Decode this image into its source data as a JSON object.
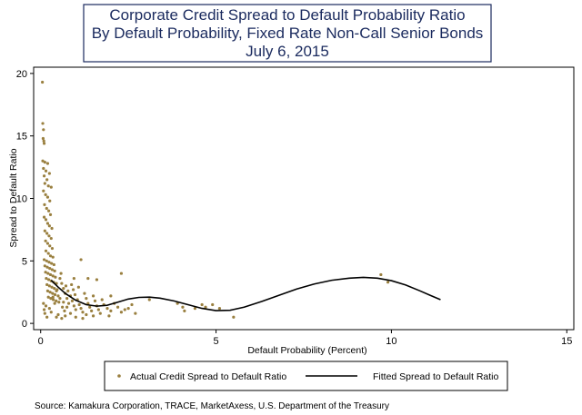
{
  "chart_data": {
    "type": "scatter",
    "title_lines": [
      "Corporate Credit Spread to Default Probability Ratio",
      "By Default Probability, Fixed Rate Non-Call Senior Bonds",
      "July 6, 2015"
    ],
    "xlabel": "Default Probability (Percent)",
    "ylabel": "Spread to Default Ratio",
    "xlim": [
      -0.2,
      15.2
    ],
    "ylim": [
      -0.5,
      20.5
    ],
    "x_ticks": [
      0,
      5,
      10,
      15
    ],
    "y_ticks": [
      0,
      5,
      10,
      15,
      20
    ],
    "x_tick_labels": [
      "0",
      "5",
      "10",
      "15"
    ],
    "y_tick_labels": [
      "0",
      "5",
      "10",
      "15",
      "20"
    ],
    "grid": false,
    "legend_position": "bottom",
    "source": "Source: Kamakura Corporation, TRACE, MarketAxess, U.S. Department of the Treasury",
    "colors": {
      "scatter": "#9a8040",
      "fit": "#000000",
      "title": "#1a2a5e"
    },
    "series": [
      {
        "name": "Actual Credit Spread to Default Ratio",
        "kind": "scatter",
        "points": [
          [
            0.05,
            19.3
          ],
          [
            0.06,
            16.0
          ],
          [
            0.08,
            15.5
          ],
          [
            0.07,
            14.8
          ],
          [
            0.1,
            14.4
          ],
          [
            0.09,
            14.6
          ],
          [
            0.06,
            13.0
          ],
          [
            0.12,
            12.9
          ],
          [
            0.2,
            12.8
          ],
          [
            0.08,
            12.4
          ],
          [
            0.15,
            12.2
          ],
          [
            0.25,
            12.0
          ],
          [
            0.1,
            11.8
          ],
          [
            0.18,
            11.5
          ],
          [
            0.12,
            11.2
          ],
          [
            0.22,
            11.0
          ],
          [
            0.3,
            10.9
          ],
          [
            0.08,
            10.6
          ],
          [
            0.14,
            10.3
          ],
          [
            0.2,
            10.1
          ],
          [
            0.26,
            9.8
          ],
          [
            0.11,
            9.5
          ],
          [
            0.17,
            9.2
          ],
          [
            0.23,
            9.0
          ],
          [
            0.28,
            8.7
          ],
          [
            0.1,
            8.5
          ],
          [
            0.15,
            8.3
          ],
          [
            0.2,
            8.0
          ],
          [
            0.25,
            7.8
          ],
          [
            0.32,
            7.6
          ],
          [
            0.12,
            7.4
          ],
          [
            0.18,
            7.2
          ],
          [
            0.24,
            7.0
          ],
          [
            0.3,
            6.8
          ],
          [
            0.14,
            6.6
          ],
          [
            0.2,
            6.4
          ],
          [
            0.26,
            6.2
          ],
          [
            0.33,
            6.0
          ],
          [
            0.15,
            5.8
          ],
          [
            0.22,
            5.6
          ],
          [
            0.28,
            5.4
          ],
          [
            0.35,
            5.3
          ],
          [
            0.1,
            5.1
          ],
          [
            0.17,
            5.0
          ],
          [
            0.24,
            4.9
          ],
          [
            0.31,
            4.8
          ],
          [
            0.38,
            4.7
          ],
          [
            0.12,
            4.6
          ],
          [
            0.19,
            4.5
          ],
          [
            0.26,
            4.4
          ],
          [
            0.33,
            4.3
          ],
          [
            0.4,
            4.2
          ],
          [
            0.14,
            4.1
          ],
          [
            0.21,
            4.0
          ],
          [
            0.28,
            3.9
          ],
          [
            0.35,
            3.8
          ],
          [
            0.42,
            3.7
          ],
          [
            0.16,
            3.6
          ],
          [
            0.23,
            3.5
          ],
          [
            0.3,
            3.4
          ],
          [
            0.37,
            3.3
          ],
          [
            0.45,
            3.2
          ],
          [
            0.18,
            3.1
          ],
          [
            0.25,
            3.0
          ],
          [
            0.32,
            2.9
          ],
          [
            0.39,
            2.8
          ],
          [
            0.47,
            2.7
          ],
          [
            0.2,
            2.6
          ],
          [
            0.27,
            2.5
          ],
          [
            0.34,
            2.4
          ],
          [
            0.41,
            2.3
          ],
          [
            0.5,
            2.2
          ],
          [
            0.22,
            2.1
          ],
          [
            0.29,
            2.0
          ],
          [
            0.36,
            1.9
          ],
          [
            0.44,
            1.8
          ],
          [
            0.52,
            1.7
          ],
          [
            0.08,
            1.6
          ],
          [
            0.15,
            1.4
          ],
          [
            0.1,
            1.1
          ],
          [
            0.12,
            0.8
          ],
          [
            0.18,
            0.5
          ],
          [
            0.25,
            1.2
          ],
          [
            0.3,
            0.9
          ],
          [
            0.55,
            3.6
          ],
          [
            0.6,
            3.2
          ],
          [
            0.65,
            2.8
          ],
          [
            0.7,
            2.4
          ],
          [
            0.75,
            2.0
          ],
          [
            0.8,
            1.6
          ],
          [
            0.58,
            4.0
          ],
          [
            0.62,
            1.3
          ],
          [
            0.68,
            1.0
          ],
          [
            0.72,
            3.0
          ],
          [
            0.78,
            2.6
          ],
          [
            0.85,
            2.2
          ],
          [
            0.9,
            1.8
          ],
          [
            0.95,
            1.4
          ],
          [
            1.0,
            1.1
          ],
          [
            0.88,
            3.1
          ],
          [
            0.93,
            2.7
          ],
          [
            0.98,
            2.3
          ],
          [
            1.05,
            1.9
          ],
          [
            1.1,
            1.5
          ],
          [
            1.15,
            1.2
          ],
          [
            1.2,
            0.9
          ],
          [
            1.08,
            2.9
          ],
          [
            1.25,
            2.4
          ],
          [
            1.3,
            2.0
          ],
          [
            1.35,
            1.6
          ],
          [
            1.4,
            1.3
          ],
          [
            1.45,
            1.0
          ],
          [
            1.5,
            2.2
          ],
          [
            1.55,
            1.8
          ],
          [
            1.6,
            1.4
          ],
          [
            1.65,
            1.1
          ],
          [
            1.7,
            0.8
          ],
          [
            1.75,
            1.9
          ],
          [
            1.8,
            1.5
          ],
          [
            1.9,
            1.2
          ],
          [
            2.0,
            1.0
          ],
          [
            2.1,
            1.6
          ],
          [
            2.2,
            1.3
          ],
          [
            2.3,
            0.9
          ],
          [
            2.4,
            1.1
          ],
          [
            1.15,
            5.1
          ],
          [
            1.35,
            3.6
          ],
          [
            1.6,
            3.5
          ],
          [
            0.95,
            3.6
          ],
          [
            0.5,
            0.7
          ],
          [
            0.45,
            0.5
          ],
          [
            0.6,
            0.4
          ],
          [
            0.7,
            0.6
          ],
          [
            0.85,
            0.8
          ],
          [
            1.0,
            0.5
          ],
          [
            1.2,
            0.4
          ],
          [
            2.5,
            1.2
          ],
          [
            2.7,
            0.8
          ],
          [
            2.3,
            4.0
          ],
          [
            2.6,
            1.5
          ],
          [
            2.0,
            2.2
          ],
          [
            1.95,
            0.6
          ],
          [
            1.5,
            0.6
          ],
          [
            1.3,
            0.7
          ],
          [
            0.4,
            1.6
          ],
          [
            0.35,
            2.1
          ],
          [
            0.45,
            2.6
          ],
          [
            0.55,
            2.0
          ],
          [
            0.65,
            1.7
          ],
          [
            0.75,
            1.3
          ],
          [
            3.9,
            1.6
          ],
          [
            4.05,
            1.3
          ],
          [
            4.1,
            1.0
          ],
          [
            4.4,
            1.2
          ],
          [
            4.6,
            1.5
          ],
          [
            4.7,
            1.3
          ],
          [
            4.9,
            1.5
          ],
          [
            5.1,
            1.2
          ],
          [
            5.5,
            0.5
          ],
          [
            9.7,
            3.9
          ],
          [
            9.9,
            3.3
          ],
          [
            3.1,
            1.9
          ]
        ]
      },
      {
        "name": "Fitted Spread to Default Ratio",
        "kind": "line",
        "points": [
          [
            0.3,
            3.45
          ],
          [
            0.5,
            2.9
          ],
          [
            0.7,
            2.4
          ],
          [
            1.0,
            1.85
          ],
          [
            1.3,
            1.5
          ],
          [
            1.6,
            1.38
          ],
          [
            1.9,
            1.45
          ],
          [
            2.2,
            1.7
          ],
          [
            2.5,
            1.95
          ],
          [
            2.8,
            2.08
          ],
          [
            3.1,
            2.1
          ],
          [
            3.4,
            2.02
          ],
          [
            3.8,
            1.8
          ],
          [
            4.2,
            1.5
          ],
          [
            4.6,
            1.2
          ],
          [
            5.0,
            1.02
          ],
          [
            5.4,
            1.05
          ],
          [
            5.8,
            1.3
          ],
          [
            6.3,
            1.75
          ],
          [
            6.8,
            2.25
          ],
          [
            7.3,
            2.75
          ],
          [
            7.8,
            3.15
          ],
          [
            8.3,
            3.45
          ],
          [
            8.8,
            3.62
          ],
          [
            9.2,
            3.68
          ],
          [
            9.6,
            3.62
          ],
          [
            10.0,
            3.42
          ],
          [
            10.4,
            3.08
          ],
          [
            10.8,
            2.62
          ],
          [
            11.1,
            2.25
          ],
          [
            11.4,
            1.9
          ]
        ]
      }
    ]
  }
}
